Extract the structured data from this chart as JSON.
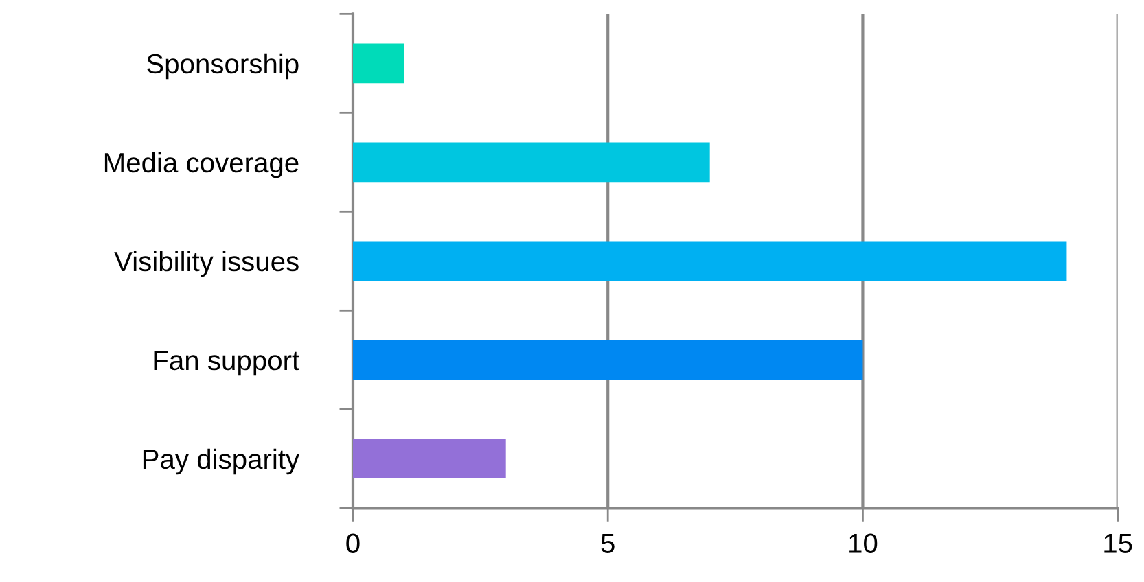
{
  "chart_data": {
    "type": "bar",
    "orientation": "horizontal",
    "categories": [
      "Sponsorship",
      "Media coverage",
      "Visibility issues",
      "Fan support",
      "Pay disparity"
    ],
    "values": [
      1,
      7,
      14,
      10,
      3
    ],
    "colors": [
      "#00dbb9",
      "#00c6e0",
      "#00b0f2",
      "#0088f2",
      "#9370d8"
    ],
    "xlim": [
      0,
      15
    ],
    "xticks": [
      0,
      5,
      10,
      15
    ],
    "grid": "x"
  }
}
